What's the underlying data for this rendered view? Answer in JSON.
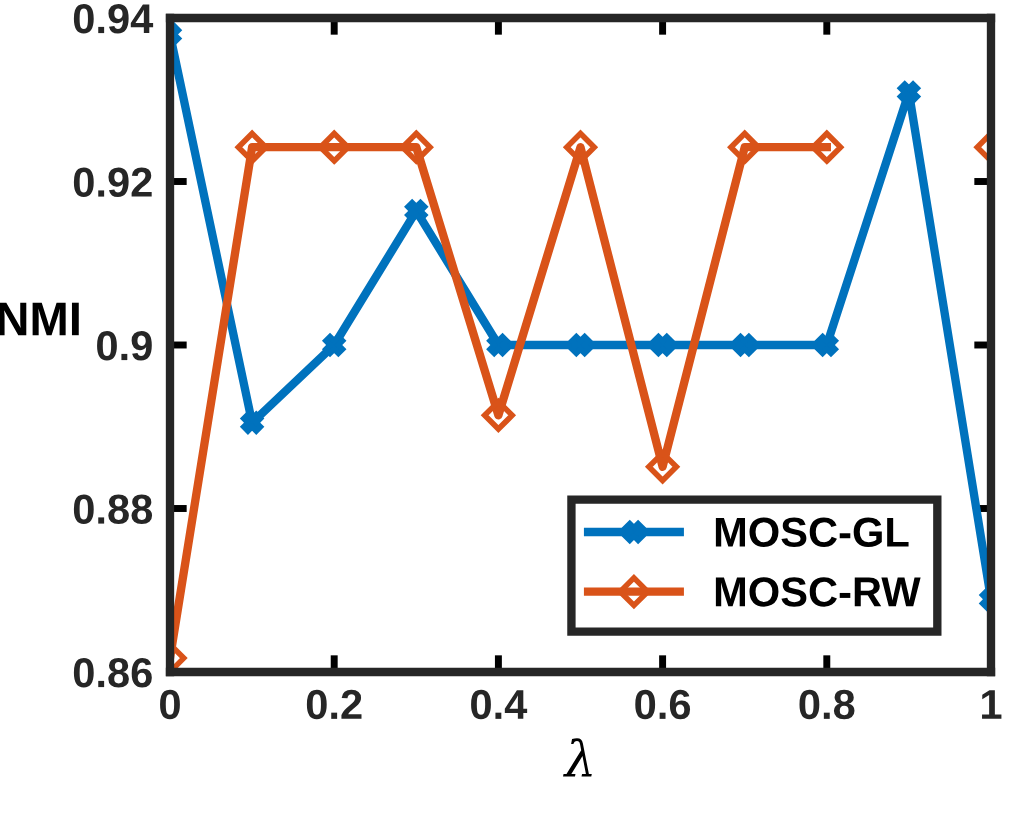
{
  "chart_data": {
    "type": "line",
    "xlabel": "λ",
    "ylabel": "NMI",
    "x": [
      0,
      0.1,
      0.2,
      0.3,
      0.4,
      0.5,
      0.6,
      0.7,
      0.8,
      0.9,
      1
    ],
    "series": [
      {
        "name": "MOSC-GL",
        "color": "#0072bd",
        "marker": "cross",
        "values": [
          0.938,
          0.8905,
          0.9,
          0.9164,
          0.9,
          0.9,
          0.9,
          0.9,
          0.9,
          0.9309,
          0.8689
        ]
      },
      {
        "name": "MOSC-RW",
        "color": "#d95319",
        "marker": "diamond",
        "values": [
          0.8617,
          0.9242,
          0.9242,
          0.9242,
          0.8914,
          0.9242,
          0.8851,
          0.9242,
          0.9242,
          null,
          0.9242
        ]
      }
    ],
    "xlim": [
      0,
      1
    ],
    "xticks": [
      0,
      0.2,
      0.4,
      0.6,
      0.8,
      1
    ],
    "ylim": [
      0.86,
      0.94
    ],
    "yticks": [
      0.86,
      0.88,
      0.9,
      0.92,
      0.94
    ],
    "grid": false,
    "legend": "bottom right",
    "line_style": "solid"
  }
}
